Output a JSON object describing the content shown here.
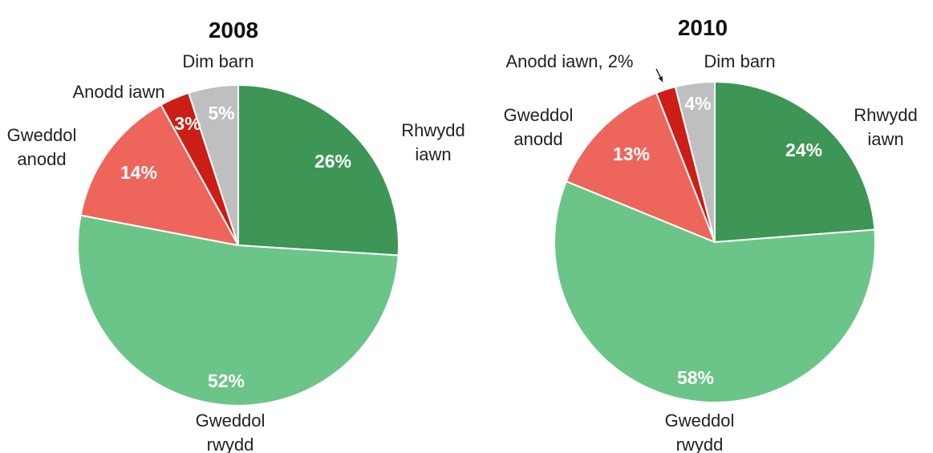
{
  "chart_data": [
    {
      "type": "pie",
      "title": "2008",
      "start": "12 o'clock",
      "direction": "clockwise",
      "slices": [
        {
          "category": "Rhwydd iawn",
          "category_lines": [
            "Rhwydd",
            "iawn"
          ],
          "value": 26,
          "value_label": "26%",
          "color": "#3D9655"
        },
        {
          "category": "Gweddol rwydd",
          "category_lines": [
            "Gweddol",
            "rwydd"
          ],
          "value": 52,
          "value_label": "52%",
          "color": "#6CC588"
        },
        {
          "category": "Gweddol anodd",
          "category_lines": [
            "Gweddol",
            "anodd"
          ],
          "value": 14,
          "value_label": "14%",
          "color": "#EE655C"
        },
        {
          "category": "Anodd iawn",
          "category_lines": [
            "Anodd iawn"
          ],
          "value": 3,
          "value_label": "3%",
          "color": "#CC1E16"
        },
        {
          "category": "Dim barn",
          "category_lines": [
            "Dim barn"
          ],
          "value": 5,
          "value_label": "5%",
          "color": "#BFBFBF"
        }
      ]
    },
    {
      "type": "pie",
      "title": "2010",
      "start": "12 o'clock",
      "direction": "clockwise",
      "slices": [
        {
          "category": "Rhwydd iawn",
          "category_lines": [
            "Rhwydd",
            "iawn"
          ],
          "value": 24,
          "value_label": "24%",
          "color": "#3D9655"
        },
        {
          "category": "Gweddol rwydd",
          "category_lines": [
            "Gweddol",
            "rwydd"
          ],
          "value": 58,
          "value_label": "58%",
          "color": "#6CC588"
        },
        {
          "category": "Gweddol anodd",
          "category_lines": [
            "Gweddol",
            "anodd"
          ],
          "value": 13,
          "value_label": "13%",
          "color": "#EE655C"
        },
        {
          "category": "Anodd iawn",
          "category_lines": [
            "Anodd iawn, 2%"
          ],
          "value": 2,
          "value_label": "",
          "color": "#CC1E16"
        },
        {
          "category": "Dim barn",
          "category_lines": [
            "Dim barn"
          ],
          "value": 4,
          "value_label": "4%",
          "color": "#BFBFBF"
        }
      ]
    }
  ]
}
